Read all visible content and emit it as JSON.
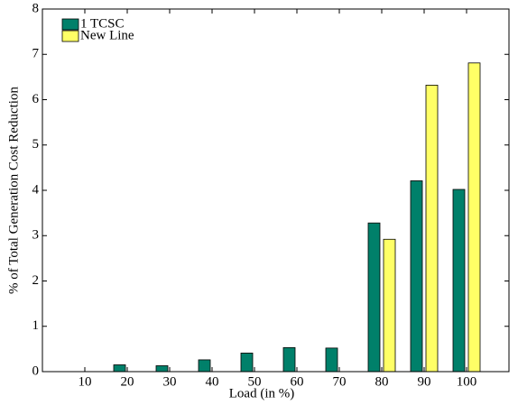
{
  "chart_data": {
    "type": "bar",
    "xlabel": "Load (in %)",
    "ylabel": "% of Total Generation Cost Reduction",
    "categories": [
      "10",
      "20",
      "30",
      "40",
      "50",
      "60",
      "70",
      "80",
      "90",
      "100"
    ],
    "series": [
      {
        "name": "1 TCSC",
        "color": "#00806a",
        "values": [
          0,
          0.15,
          0.13,
          0.26,
          0.41,
          0.53,
          0.52,
          3.28,
          4.21,
          4.02
        ]
      },
      {
        "name": "New Line",
        "color": "#ffff66",
        "values": [
          0,
          0,
          0,
          0,
          0,
          0,
          0,
          2.92,
          6.32,
          6.81
        ]
      }
    ],
    "ylim": [
      0,
      8
    ],
    "yticks": [
      0,
      1,
      2,
      3,
      4,
      5,
      6,
      7,
      8
    ],
    "legend": "top-left"
  }
}
